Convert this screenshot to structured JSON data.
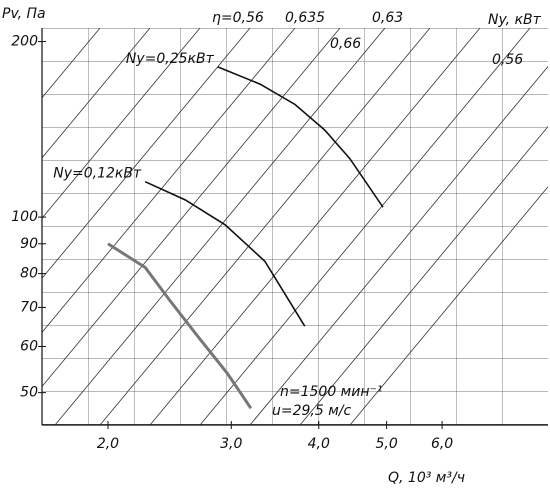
{
  "chart_data": {
    "type": "line",
    "y_label": "Pv, Па",
    "y2_label": "Ny, кВт",
    "x_label": "Q, 10³ м³/ч",
    "xscale": "log",
    "yscale": "log",
    "xlim": [
      1.61,
      8.5
    ],
    "ylim": [
      44,
      211
    ],
    "xticks": [
      {
        "value": 2,
        "label": "2,0"
      },
      {
        "value": 3,
        "label": "3,0"
      },
      {
        "value": 4,
        "label": "4,0"
      },
      {
        "value": 5,
        "label": "5,0"
      },
      {
        "value": 6,
        "label": "6,0"
      }
    ],
    "yticks": [
      50,
      60,
      70,
      80,
      90,
      100,
      200
    ],
    "series": [
      {
        "color": "#777777",
        "x": [
          2.0,
          2.26,
          2.45,
          2.7,
          2.96,
          3.2
        ],
        "values": [
          90,
          82,
          72,
          62,
          54,
          47
        ]
      },
      {
        "name": "Ny=0,12кВт",
        "color": "#111111",
        "x": [
          2.26,
          2.58,
          2.94,
          3.35,
          3.82
        ],
        "values": [
          115,
          107,
          97,
          84,
          65
        ]
      },
      {
        "name": "Ny=0,25кВт",
        "color": "#111111",
        "x": [
          2.87,
          3.3,
          3.7,
          4.08,
          4.43,
          4.94
        ],
        "values": [
          181,
          169,
          156,
          141,
          126,
          104
        ]
      }
    ],
    "efficiency_labels": [
      "η=0,56",
      "0,635",
      "0,63",
      "0,66",
      "0,56"
    ],
    "annotations": [
      "n=1500 мин⁻¹",
      "u=29,5 м/с"
    ]
  }
}
